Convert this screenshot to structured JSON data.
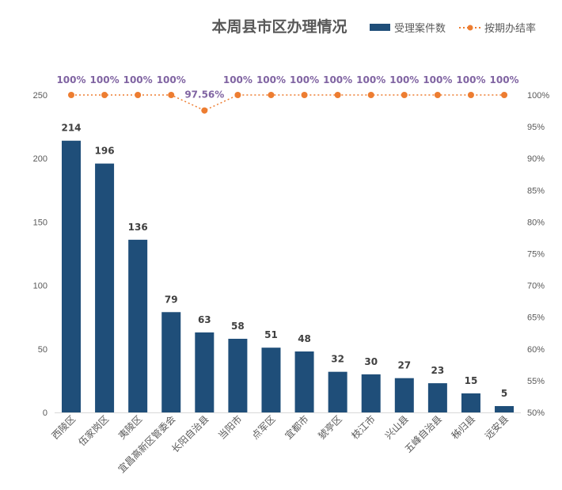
{
  "chart_data": {
    "type": "bar",
    "title": "本周县市区办理情况",
    "categories": [
      "西陵区",
      "伍家岗区",
      "夷陵区",
      "宜昌高新区管委会",
      "长阳自治县",
      "当阳市",
      "点军区",
      "宜都市",
      "猇亭区",
      "枝江市",
      "兴山县",
      "五峰自治县",
      "秭归县",
      "远安县"
    ],
    "series": [
      {
        "name": "受理案件数",
        "type": "bar",
        "axis": "left",
        "color": "#1f4e79",
        "values": [
          214,
          196,
          136,
          79,
          63,
          58,
          51,
          48,
          32,
          30,
          27,
          23,
          15,
          5
        ],
        "labels": [
          "214",
          "196",
          "136",
          "79",
          "63",
          "58",
          "51",
          "48",
          "32",
          "30",
          "27",
          "23",
          "15",
          "5"
        ]
      },
      {
        "name": "按期办结率",
        "type": "line",
        "axis": "right",
        "color": "#ed7d31",
        "values": [
          100,
          100,
          100,
          100,
          97.56,
          100,
          100,
          100,
          100,
          100,
          100,
          100,
          100,
          100
        ],
        "labels": [
          "100%",
          "100%",
          "100%",
          "100%",
          "97.56%",
          "100%",
          "100%",
          "100%",
          "100%",
          "100%",
          "100%",
          "100%",
          "100%",
          "100%"
        ]
      }
    ],
    "left_axis": {
      "ylim": [
        0,
        250
      ],
      "ticks": [
        0,
        50,
        100,
        150,
        200,
        250
      ],
      "tick_labels": [
        "0",
        "50",
        "100",
        "150",
        "200",
        "250"
      ]
    },
    "right_axis": {
      "ylim": [
        50,
        100
      ],
      "ticks": [
        50,
        55,
        60,
        65,
        70,
        75,
        80,
        85,
        90,
        95,
        100
      ],
      "tick_labels": [
        "50%",
        "55%",
        "60%",
        "65%",
        "70%",
        "75%",
        "80%",
        "85%",
        "90%",
        "95%",
        "100%"
      ]
    },
    "xlabel": "",
    "ylabel": "",
    "grid": false,
    "legend_position": "top-right",
    "rate_label_color": "#8064a2"
  }
}
